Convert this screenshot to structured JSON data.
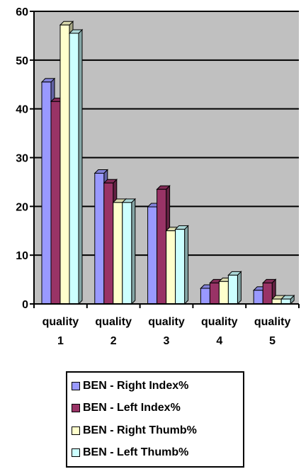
{
  "chart_data": {
    "type": "bar",
    "categories": [
      [
        "quality",
        "1"
      ],
      [
        "quality",
        "2"
      ],
      [
        "quality",
        "3"
      ],
      [
        "quality",
        "4"
      ],
      [
        "quality",
        "5"
      ]
    ],
    "series": [
      {
        "name": "BEN - Right Index%",
        "color": "#9999ff",
        "values": [
          45.5,
          26.8,
          19.9,
          3.2,
          2.8
        ]
      },
      {
        "name": "BEN - Left Index%",
        "color": "#993366",
        "values": [
          41.5,
          24.8,
          23.5,
          4.3,
          4.3
        ]
      },
      {
        "name": "BEN - Right Thumb%",
        "color": "#ffffcc",
        "values": [
          57.2,
          20.8,
          15.0,
          4.6,
          1.0
        ]
      },
      {
        "name": "BEN - Left Thumb%",
        "color": "#ccffff",
        "values": [
          55.5,
          20.8,
          15.3,
          5.9,
          1.0
        ]
      }
    ],
    "y_ticks": [
      "0",
      "10",
      "20",
      "30",
      "40",
      "50",
      "60"
    ],
    "ylim": [
      0,
      60
    ],
    "grid": true,
    "plot_background": "#c0c0c0",
    "legend_position": "bottom"
  }
}
